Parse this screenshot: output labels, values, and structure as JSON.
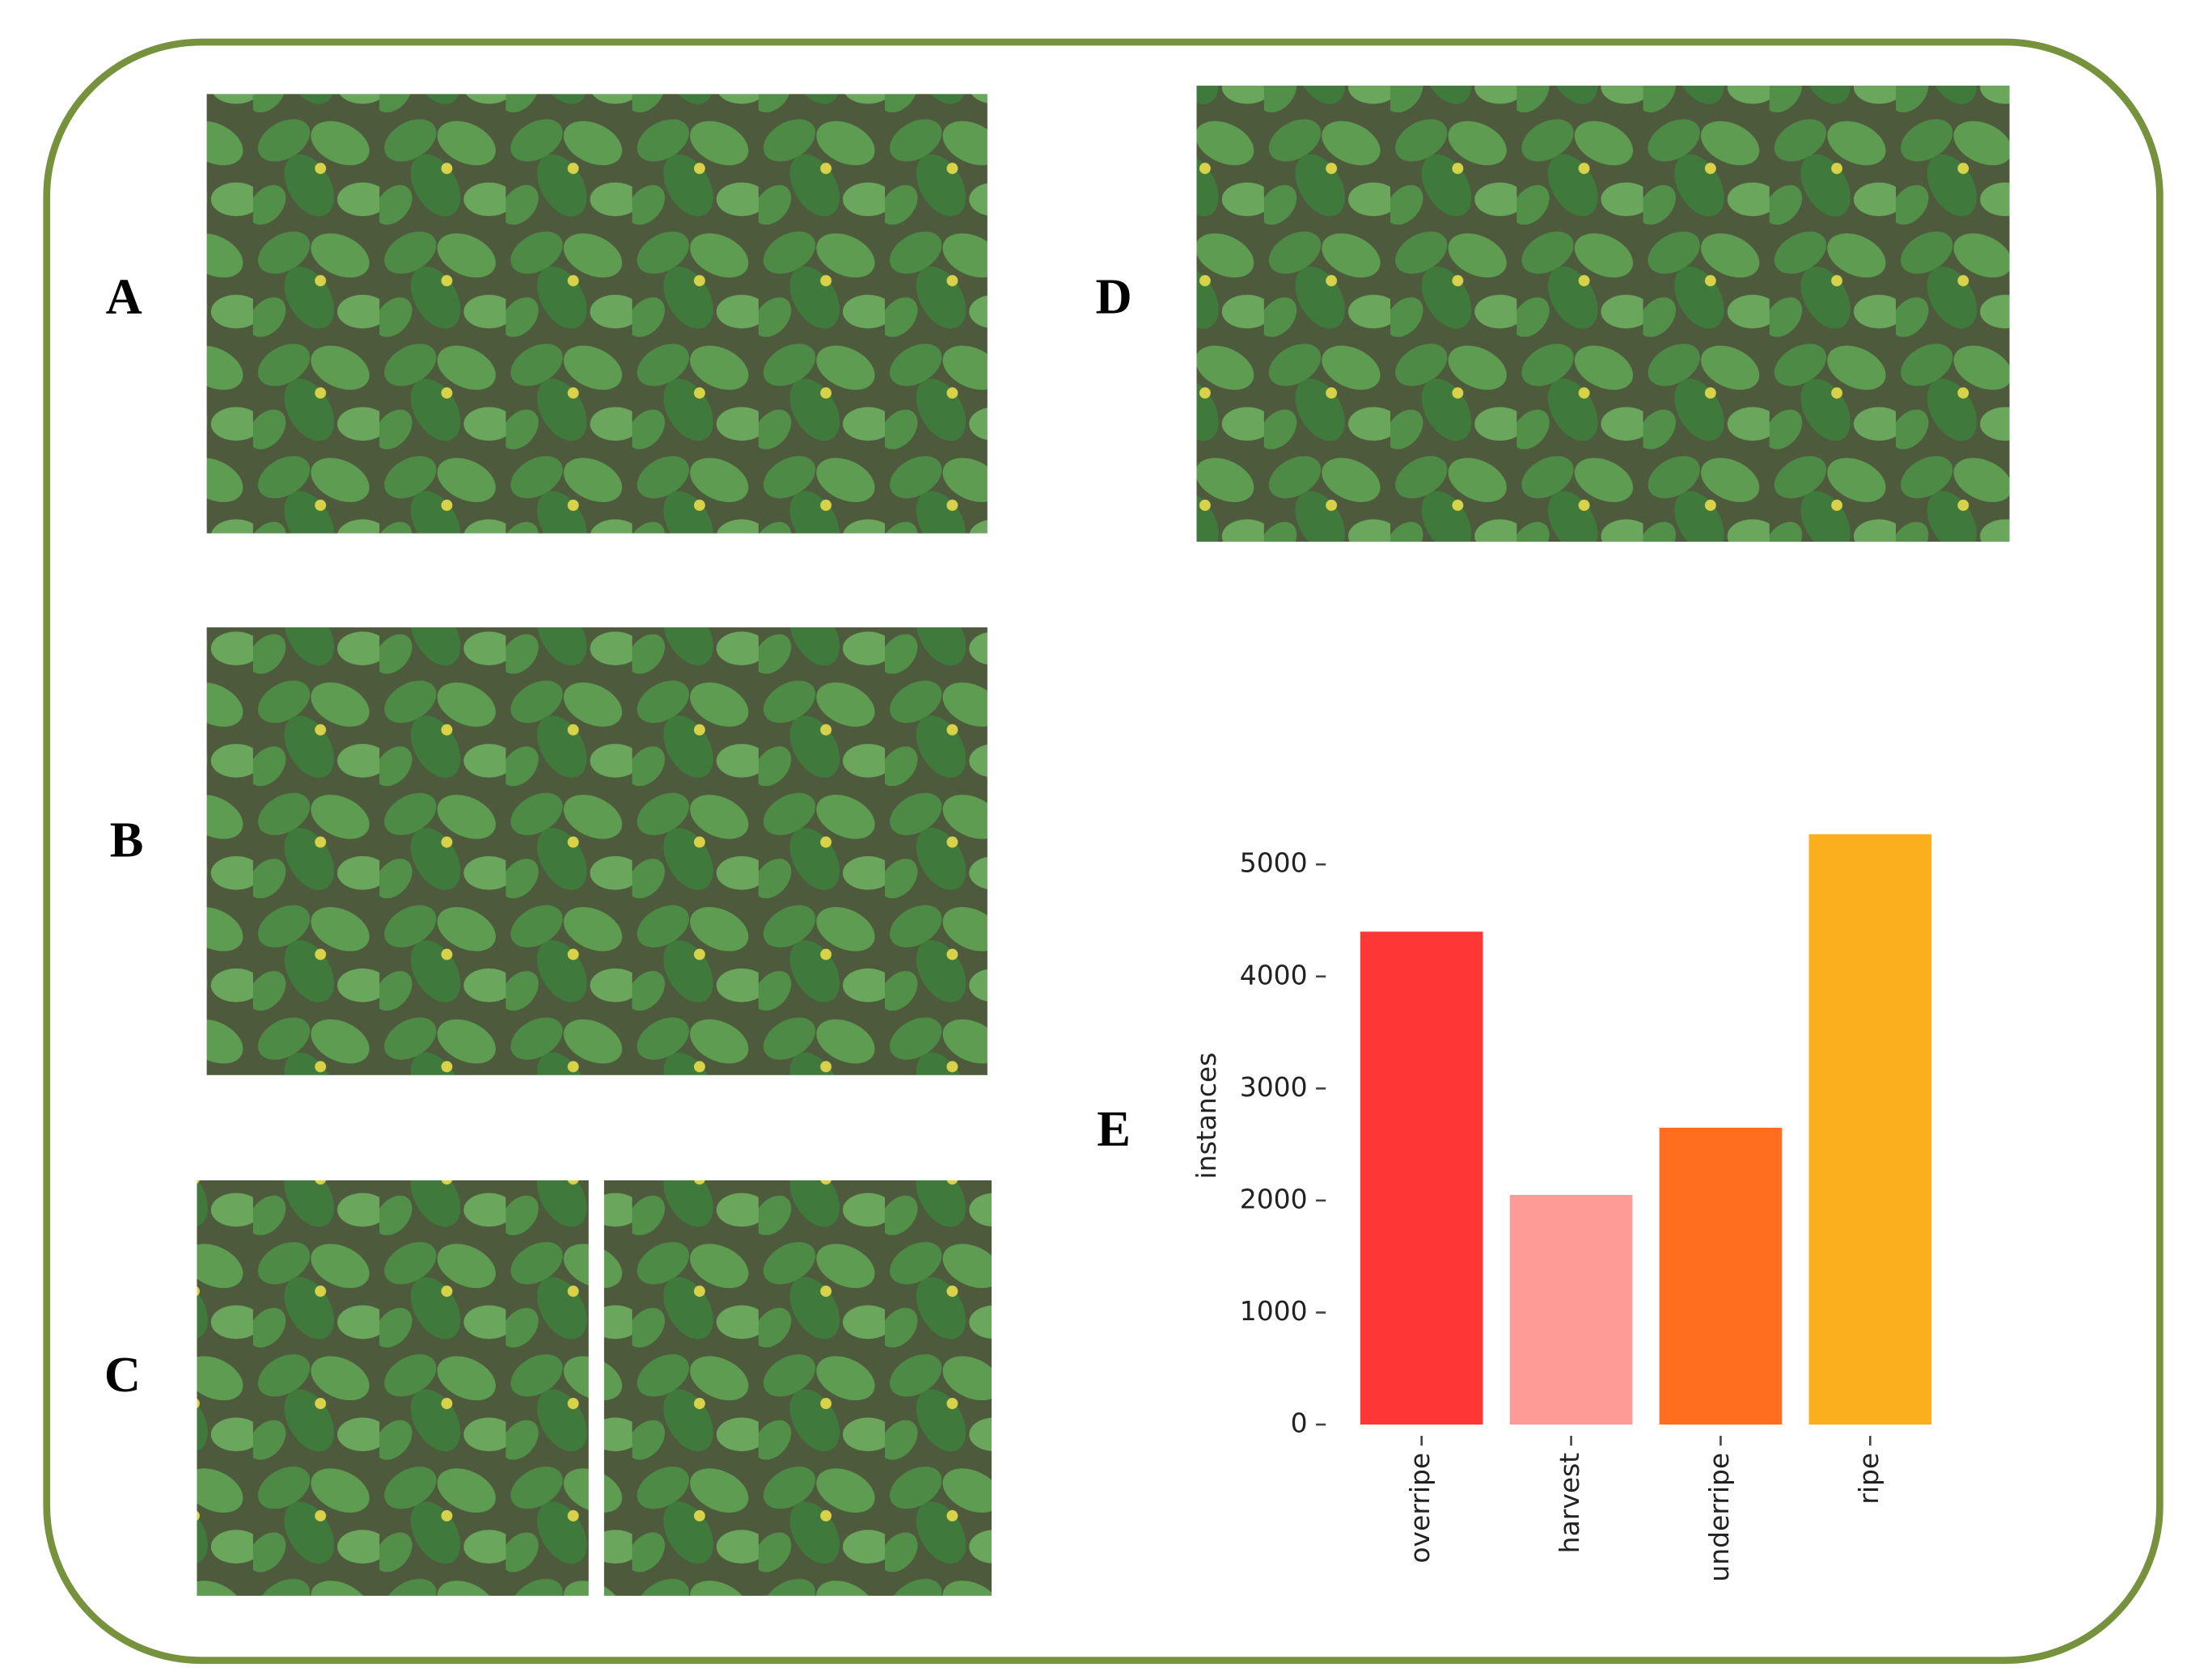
{
  "panel_labels": [
    "A",
    "B",
    "C",
    "D",
    "E"
  ],
  "chart_data": {
    "type": "bar",
    "ylabel": "instances",
    "categories": [
      "overripe",
      "harvest",
      "underripe",
      "ripe"
    ],
    "values": [
      4400,
      2050,
      2650,
      5270
    ],
    "colors": [
      "#ff3636",
      "#ff9b97",
      "#ff6e1f",
      "#fbae1e"
    ],
    "ylim": [
      0,
      5500
    ],
    "yticks": [
      0,
      1000,
      2000,
      3000,
      4000,
      5000
    ],
    "grid": false
  }
}
